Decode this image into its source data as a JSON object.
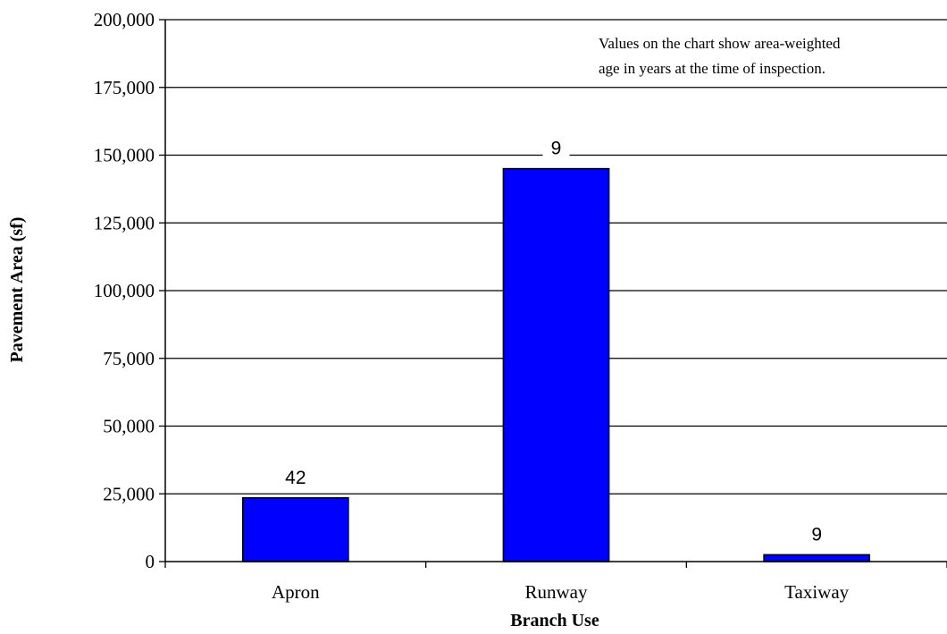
{
  "chart_data": {
    "type": "bar",
    "title": "",
    "xlabel": "Branch Use",
    "ylabel": "Pavement Area (sf)",
    "categories": [
      "Apron",
      "Runway",
      "Taxiway"
    ],
    "values": [
      23500,
      145000,
      2500
    ],
    "data_labels": [
      "42",
      "9",
      "9"
    ],
    "ylim": [
      0,
      200000
    ],
    "y_ticks": [
      0,
      25000,
      50000,
      75000,
      100000,
      125000,
      150000,
      175000,
      200000
    ],
    "y_tick_labels": [
      "0",
      "25,000",
      "50,000",
      "75,000",
      "100,000",
      "125,000",
      "150,000",
      "175,000",
      "200,000"
    ],
    "grid": "horizontal",
    "annotation": {
      "line1": "Values on the chart show area-weighted",
      "line2": "age in years at the time of inspection."
    },
    "colors": {
      "bar_fill": "#0000FF",
      "bar_stroke": "#000000",
      "grid": "#000000",
      "background": "#FFFFFF"
    }
  }
}
